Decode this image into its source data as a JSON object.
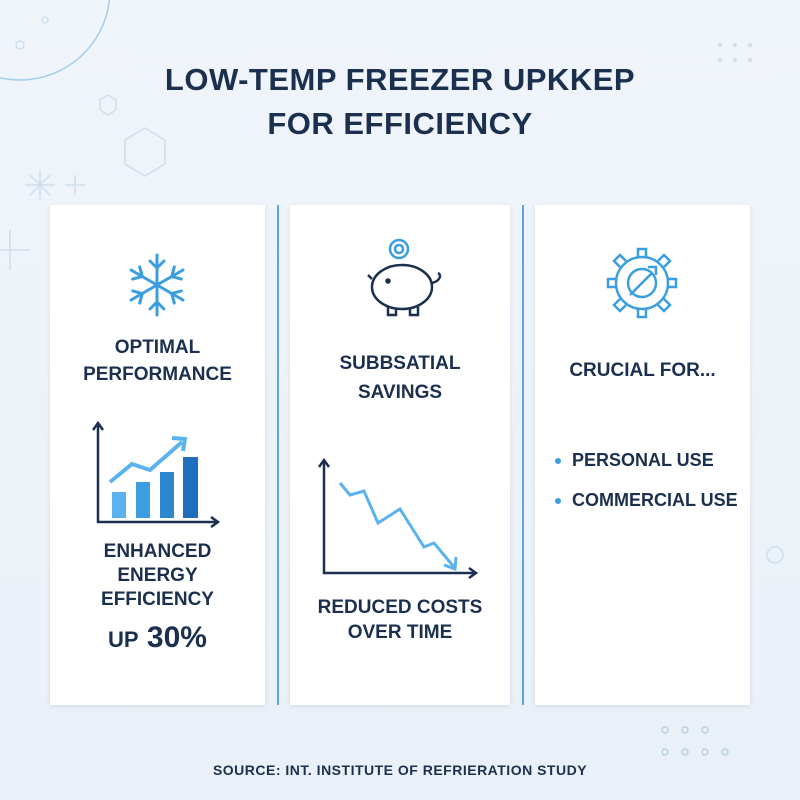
{
  "header": {
    "title": [
      "LOW-TEMP FREEZER UPKKEP",
      "FOR EFFICIENCY"
    ]
  },
  "cards": [
    {
      "heading": [
        "OPTIMAL",
        "PERFORMANCE"
      ],
      "caption": [
        "ENHANCED",
        "ENERGY",
        "EFFICIENCY"
      ],
      "highlight_prefix": "UP",
      "highlight": "30%"
    },
    {
      "heading": [
        "SUBBSATIAL",
        "SAVINGS"
      ],
      "caption": [
        "REDUCED COSTS",
        "OVER TIME"
      ]
    },
    {
      "heading": [
        "CRUCIAL FOR..."
      ],
      "items": [
        "PERSONAL USE",
        "COMMERCIAL USE"
      ]
    }
  ],
  "footer": {
    "source": "SOURCE: INT. INSTITUTE OF REFRIERATION STUDY"
  }
}
